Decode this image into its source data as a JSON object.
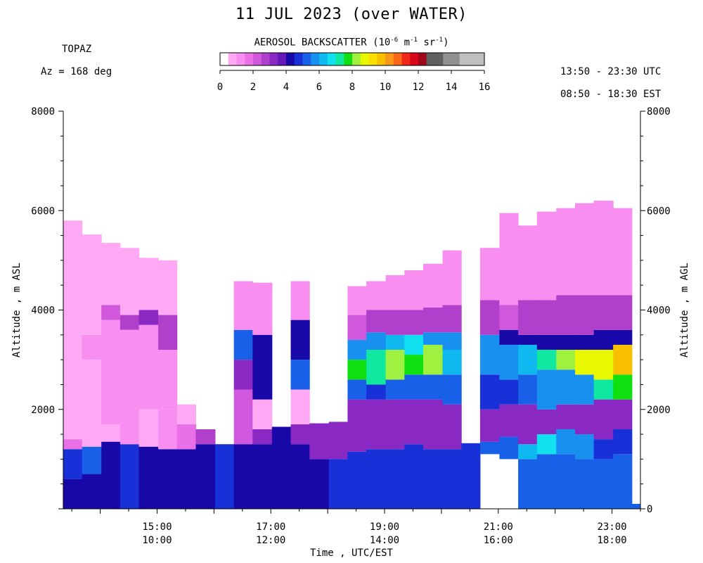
{
  "header": {
    "title": "11 JUL 2023 (over WATER)",
    "instrument": "TOPAZ",
    "azimuth": "Az = 168 deg",
    "utc_range": "13:50 - 23:30 UTC",
    "est_range": "08:50 - 18:30 EST"
  },
  "colorbar": {
    "label_prefix": "AEROSOL BACKSCATTER (10",
    "label_exp1": "-6",
    "label_mid1": " m",
    "label_exp2": "-1",
    "label_mid2": " sr",
    "label_exp3": "-1",
    "label_suffix": ")",
    "ticks": [
      "0",
      "2",
      "4",
      "6",
      "8",
      "10",
      "12",
      "14",
      "16"
    ],
    "min": 0,
    "max": 16,
    "colors": [
      "#ffffff",
      "#ffa8f4",
      "#f78ef0",
      "#ea70e8",
      "#d058dc",
      "#b040cc",
      "#8a28c4",
      "#6418b8",
      "#1808a8",
      "#1830d8",
      "#1860e8",
      "#1890f0",
      "#10b8f0",
      "#10e0f0",
      "#10e8a0",
      "#10e010",
      "#a0f040",
      "#e8f800",
      "#f8e000",
      "#f8c000",
      "#f89818",
      "#f86818",
      "#f02818",
      "#d80818",
      "#a00818",
      "#606060",
      "#606060",
      "#909090",
      "#909090",
      "#c0c0c0",
      "#c0c0c0",
      "#c0c0c0"
    ]
  },
  "chart_data": {
    "type": "heatmap",
    "title": "11 JUL 2023 (over WATER)",
    "xlabel": "Time , UTC/EST",
    "ylabel_left": "Altitude , m ASL",
    "ylabel_right": "Altitude , m AGL",
    "xlim_utc_hours": [
      13.35,
      23.5
    ],
    "ylim": [
      0,
      8000
    ],
    "x_ticks": [
      {
        "utc": "15:00",
        "est": "10:00",
        "hour": 15
      },
      {
        "utc": "17:00",
        "est": "12:00",
        "hour": 17
      },
      {
        "utc": "19:00",
        "est": "14:00",
        "hour": 19
      },
      {
        "utc": "21:00",
        "est": "16:00",
        "hour": 21
      },
      {
        "utc": "23:00",
        "est": "18:00",
        "hour": 23
      }
    ],
    "y_ticks_left": [
      "8000",
      "6000",
      "4000",
      "2000"
    ],
    "y_ticks_right": [
      "8000",
      "6000",
      "4000",
      "2000",
      "0"
    ],
    "y_tick_values_left": [
      8000,
      6000,
      4000,
      2000
    ],
    "y_tick_values_right": [
      8000,
      6000,
      4000,
      2000,
      0
    ],
    "profiles": [
      {
        "t0": 13.35,
        "t1": 13.68,
        "top": 5800,
        "layers": [
          [
            0,
            600,
            "#1808a8"
          ],
          [
            600,
            1200,
            "#1830d8"
          ],
          [
            1200,
            1400,
            "#ea70e8"
          ],
          [
            1400,
            5800,
            "#ffa8f4"
          ]
        ]
      },
      {
        "t0": 13.68,
        "t1": 14.02,
        "top": 5520,
        "layers": [
          [
            0,
            700,
            "#1808a8"
          ],
          [
            700,
            1250,
            "#1860e8"
          ],
          [
            1250,
            3000,
            "#ffa8f4"
          ],
          [
            3000,
            3500,
            "#f78ef0"
          ],
          [
            3500,
            5520,
            "#ffa8f4"
          ]
        ]
      },
      {
        "t0": 14.02,
        "t1": 14.35,
        "top": 5350,
        "layers": [
          [
            0,
            1350,
            "#1808a8"
          ],
          [
            1350,
            1700,
            "#ffa8f4"
          ],
          [
            1700,
            3800,
            "#f78ef0"
          ],
          [
            3800,
            4100,
            "#d058dc"
          ],
          [
            4100,
            5350,
            "#ffa8f4"
          ]
        ]
      },
      {
        "t0": 14.35,
        "t1": 14.68,
        "top": 5250,
        "layers": [
          [
            0,
            1300,
            "#1830d8"
          ],
          [
            1300,
            1500,
            "#f78ef0"
          ],
          [
            1500,
            3600,
            "#f78ef0"
          ],
          [
            3600,
            3900,
            "#b040cc"
          ],
          [
            3900,
            5250,
            "#ffa8f4"
          ]
        ]
      },
      {
        "t0": 14.68,
        "t1": 15.02,
        "top": 5050,
        "layers": [
          [
            0,
            1250,
            "#1808a8"
          ],
          [
            1250,
            2000,
            "#ffa8f4"
          ],
          [
            2000,
            3700,
            "#f78ef0"
          ],
          [
            3700,
            4000,
            "#8a28c4"
          ],
          [
            4000,
            5050,
            "#ffa8f4"
          ]
        ]
      },
      {
        "t0": 15.02,
        "t1": 15.35,
        "top": 5000,
        "layers": [
          [
            0,
            1200,
            "#1808a8"
          ],
          [
            1200,
            2000,
            "#f78ef0"
          ],
          [
            2000,
            3200,
            "#f78ef0"
          ],
          [
            3200,
            3900,
            "#b040cc"
          ],
          [
            3900,
            5000,
            "#ffa8f4"
          ]
        ]
      },
      {
        "t0": 15.35,
        "t1": 15.68,
        "top": 2100,
        "layers": [
          [
            0,
            1200,
            "#1808a8"
          ],
          [
            1200,
            1700,
            "#ea70e8"
          ],
          [
            1700,
            2100,
            "#ffa8f4"
          ]
        ]
      },
      {
        "t0": 15.68,
        "t1": 16.02,
        "top": 1600,
        "layers": [
          [
            0,
            1300,
            "#1808a8"
          ],
          [
            1300,
            1600,
            "#b040cc"
          ]
        ]
      },
      {
        "t0": 16.02,
        "t1": 16.35,
        "top": 1300,
        "layers": [
          [
            0,
            1300,
            "#1830d8"
          ]
        ]
      },
      {
        "t0": 16.35,
        "t1": 16.68,
        "top": 4580,
        "layers": [
          [
            0,
            1300,
            "#1808a8"
          ],
          [
            1300,
            2400,
            "#d058dc"
          ],
          [
            2400,
            3000,
            "#8a28c4"
          ],
          [
            3000,
            3600,
            "#1860e8"
          ],
          [
            3600,
            4580,
            "#f78ef0"
          ]
        ]
      },
      {
        "t0": 16.68,
        "t1": 17.02,
        "top": 4550,
        "layers": [
          [
            0,
            1300,
            "#1808a8"
          ],
          [
            1300,
            1600,
            "#8a28c4"
          ],
          [
            1600,
            2200,
            "#ffa8f4"
          ],
          [
            2200,
            3500,
            "#1808a8"
          ],
          [
            3500,
            4550,
            "#f78ef0"
          ]
        ]
      },
      {
        "t0": 17.02,
        "t1": 17.35,
        "top": 1650,
        "layers": [
          [
            0,
            1650,
            "#1808a8"
          ]
        ]
      },
      {
        "t0": 17.35,
        "t1": 17.68,
        "top": 4580,
        "layers": [
          [
            0,
            1300,
            "#1808a8"
          ],
          [
            1300,
            1700,
            "#8a28c4"
          ],
          [
            1700,
            2400,
            "#ffa8f4"
          ],
          [
            2400,
            3000,
            "#1860e8"
          ],
          [
            3000,
            3800,
            "#1808a8"
          ],
          [
            3800,
            4580,
            "#f78ef0"
          ]
        ]
      },
      {
        "t0": 17.68,
        "t1": 18.02,
        "top": 1720,
        "layers": [
          [
            0,
            1000,
            "#1808a8"
          ],
          [
            1000,
            1720,
            "#8a28c4"
          ]
        ]
      },
      {
        "t0": 18.02,
        "t1": 18.35,
        "top": 1750,
        "layers": [
          [
            0,
            1000,
            "#1830d8"
          ],
          [
            1000,
            1750,
            "#8a28c4"
          ]
        ]
      },
      {
        "t0": 18.35,
        "t1": 18.68,
        "top": 4480,
        "layers": [
          [
            0,
            1150,
            "#1830d8"
          ],
          [
            1150,
            2200,
            "#8a28c4"
          ],
          [
            2200,
            2600,
            "#1860e8"
          ],
          [
            2600,
            3000,
            "#10e010"
          ],
          [
            3000,
            3400,
            "#1890f0"
          ],
          [
            3400,
            3900,
            "#d058dc"
          ],
          [
            3900,
            4480,
            "#f78ef0"
          ]
        ]
      },
      {
        "t0": 18.68,
        "t1": 19.02,
        "top": 4580,
        "layers": [
          [
            0,
            1200,
            "#1830d8"
          ],
          [
            1200,
            2200,
            "#8a28c4"
          ],
          [
            2200,
            2500,
            "#1830d8"
          ],
          [
            2500,
            3200,
            "#10e8a0"
          ],
          [
            3200,
            3550,
            "#1890f0"
          ],
          [
            3550,
            4000,
            "#b040cc"
          ],
          [
            4000,
            4580,
            "#f78ef0"
          ]
        ]
      },
      {
        "t0": 19.02,
        "t1": 19.35,
        "top": 4700,
        "layers": [
          [
            0,
            1200,
            "#1830d8"
          ],
          [
            1200,
            2200,
            "#8a28c4"
          ],
          [
            2200,
            2600,
            "#1860e8"
          ],
          [
            2600,
            3200,
            "#a0f040"
          ],
          [
            3200,
            3500,
            "#10b8f0"
          ],
          [
            3500,
            4000,
            "#b040cc"
          ],
          [
            4000,
            4700,
            "#f78ef0"
          ]
        ]
      },
      {
        "t0": 19.35,
        "t1": 19.68,
        "top": 4800,
        "layers": [
          [
            0,
            1300,
            "#1830d8"
          ],
          [
            1300,
            2200,
            "#8a28c4"
          ],
          [
            2200,
            2700,
            "#1860e8"
          ],
          [
            2700,
            3100,
            "#10e010"
          ],
          [
            3100,
            3500,
            "#10e0f0"
          ],
          [
            3500,
            4000,
            "#b040cc"
          ],
          [
            4000,
            4800,
            "#f78ef0"
          ]
        ]
      },
      {
        "t0": 19.68,
        "t1": 20.02,
        "top": 4930,
        "layers": [
          [
            0,
            1200,
            "#1830d8"
          ],
          [
            1200,
            2200,
            "#8a28c4"
          ],
          [
            2200,
            2700,
            "#1860e8"
          ],
          [
            2700,
            3300,
            "#a0f040"
          ],
          [
            3300,
            3550,
            "#1890f0"
          ],
          [
            3550,
            4050,
            "#b040cc"
          ],
          [
            4050,
            4930,
            "#f78ef0"
          ]
        ]
      },
      {
        "t0": 20.02,
        "t1": 20.35,
        "top": 5200,
        "layers": [
          [
            0,
            1200,
            "#1830d8"
          ],
          [
            1200,
            2100,
            "#8a28c4"
          ],
          [
            2100,
            2700,
            "#1860e8"
          ],
          [
            2700,
            3200,
            "#10b8f0"
          ],
          [
            3200,
            3550,
            "#1890f0"
          ],
          [
            3550,
            4100,
            "#b040cc"
          ],
          [
            4100,
            5200,
            "#f78ef0"
          ]
        ]
      },
      {
        "t0": 20.35,
        "t1": 20.68,
        "top": 1320,
        "layers": [
          [
            0,
            1320,
            "#1830d8"
          ]
        ]
      },
      {
        "t0": 20.68,
        "t1": 21.02,
        "top": 5250,
        "layers": [
          [
            1100,
            1350,
            "#1860e8"
          ],
          [
            1350,
            2000,
            "#8a28c4"
          ],
          [
            2000,
            2700,
            "#1830d8"
          ],
          [
            2700,
            3500,
            "#1890f0"
          ],
          [
            3500,
            4200,
            "#b040cc"
          ],
          [
            4200,
            5250,
            "#f78ef0"
          ]
        ]
      },
      {
        "t0": 21.02,
        "t1": 21.35,
        "top": 5950,
        "layers": [
          [
            1000,
            1450,
            "#1860e8"
          ],
          [
            1450,
            2100,
            "#8a28c4"
          ],
          [
            2100,
            2600,
            "#1830d8"
          ],
          [
            2600,
            3300,
            "#1890f0"
          ],
          [
            3300,
            3600,
            "#1808a8"
          ],
          [
            3600,
            4100,
            "#d058dc"
          ],
          [
            4100,
            5950,
            "#f78ef0"
          ]
        ]
      },
      {
        "t0": 21.35,
        "t1": 21.68,
        "top": 5700,
        "layers": [
          [
            0,
            1000,
            "#1860e8"
          ],
          [
            1000,
            1300,
            "#10b8f0"
          ],
          [
            1300,
            2100,
            "#8a28c4"
          ],
          [
            2100,
            2700,
            "#1860e8"
          ],
          [
            2700,
            3300,
            "#10b8f0"
          ],
          [
            3300,
            3500,
            "#1808a8"
          ],
          [
            3500,
            4200,
            "#b040cc"
          ],
          [
            4200,
            5700,
            "#f78ef0"
          ]
        ]
      },
      {
        "t0": 21.68,
        "t1": 22.02,
        "top": 5980,
        "layers": [
          [
            0,
            1100,
            "#1860e8"
          ],
          [
            1100,
            1500,
            "#10e0f0"
          ],
          [
            1500,
            2000,
            "#8a28c4"
          ],
          [
            2000,
            2800,
            "#1890f0"
          ],
          [
            2800,
            3200,
            "#10e8a0"
          ],
          [
            3200,
            3500,
            "#1808a8"
          ],
          [
            3500,
            4200,
            "#b040cc"
          ],
          [
            4200,
            5980,
            "#f78ef0"
          ]
        ]
      },
      {
        "t0": 22.02,
        "t1": 22.35,
        "top": 6050,
        "layers": [
          [
            0,
            1100,
            "#1860e8"
          ],
          [
            1100,
            1600,
            "#1890f0"
          ],
          [
            1600,
            2100,
            "#8a28c4"
          ],
          [
            2100,
            2800,
            "#1890f0"
          ],
          [
            2800,
            3200,
            "#a0f040"
          ],
          [
            3200,
            3500,
            "#1808a8"
          ],
          [
            3500,
            4300,
            "#b040cc"
          ],
          [
            4300,
            6050,
            "#f78ef0"
          ]
        ]
      },
      {
        "t0": 22.35,
        "t1": 22.68,
        "top": 6150,
        "layers": [
          [
            0,
            1000,
            "#1860e8"
          ],
          [
            1000,
            1500,
            "#1890f0"
          ],
          [
            1500,
            2100,
            "#8a28c4"
          ],
          [
            2100,
            2700,
            "#1890f0"
          ],
          [
            2700,
            3200,
            "#e8f800"
          ],
          [
            3200,
            3500,
            "#1808a8"
          ],
          [
            3500,
            4300,
            "#b040cc"
          ],
          [
            4300,
            6150,
            "#f78ef0"
          ]
        ]
      },
      {
        "t0": 22.68,
        "t1": 23.02,
        "top": 6200,
        "layers": [
          [
            0,
            1000,
            "#1860e8"
          ],
          [
            1000,
            1400,
            "#1830d8"
          ],
          [
            1400,
            2200,
            "#8a28c4"
          ],
          [
            2200,
            2600,
            "#10e8a0"
          ],
          [
            2600,
            3200,
            "#e8f800"
          ],
          [
            3200,
            3600,
            "#1808a8"
          ],
          [
            3600,
            4300,
            "#b040cc"
          ],
          [
            4300,
            6200,
            "#f78ef0"
          ]
        ]
      },
      {
        "t0": 23.02,
        "t1": 23.35,
        "top": 6050,
        "layers": [
          [
            0,
            1100,
            "#1860e8"
          ],
          [
            1100,
            1600,
            "#1830d8"
          ],
          [
            1600,
            2200,
            "#8a28c4"
          ],
          [
            2200,
            2700,
            "#10e010"
          ],
          [
            2700,
            3300,
            "#f8c000"
          ],
          [
            3300,
            3600,
            "#1808a8"
          ],
          [
            3600,
            4300,
            "#b040cc"
          ],
          [
            4300,
            6050,
            "#f78ef0"
          ]
        ]
      },
      {
        "t0": 23.35,
        "t1": 23.5,
        "top": 100,
        "layers": [
          [
            0,
            100,
            "#1860e8"
          ]
        ]
      }
    ]
  }
}
